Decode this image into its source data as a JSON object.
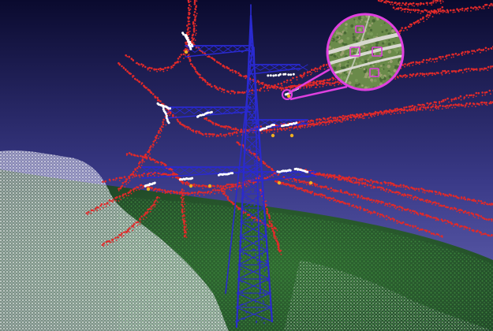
{
  "scene": {
    "sky_top_color": "#0a0a2e",
    "sky_mid_color": "#3a3a88",
    "sky_horizon_color": "#6a6ab8",
    "ground_color": "#2a5a2a",
    "vegetation_point_color": "#f2f2f8",
    "tower_point_color": "#2a2ad0",
    "conductor_point_color": "#e02a2a",
    "insulator_point_color": "#ffffff",
    "highlight_point_color": "#f0b020",
    "inset_ring_color": "#e040e0",
    "inset_map_color": "#6a8a4a",
    "inset_road_color": "#d8d8d0"
  }
}
